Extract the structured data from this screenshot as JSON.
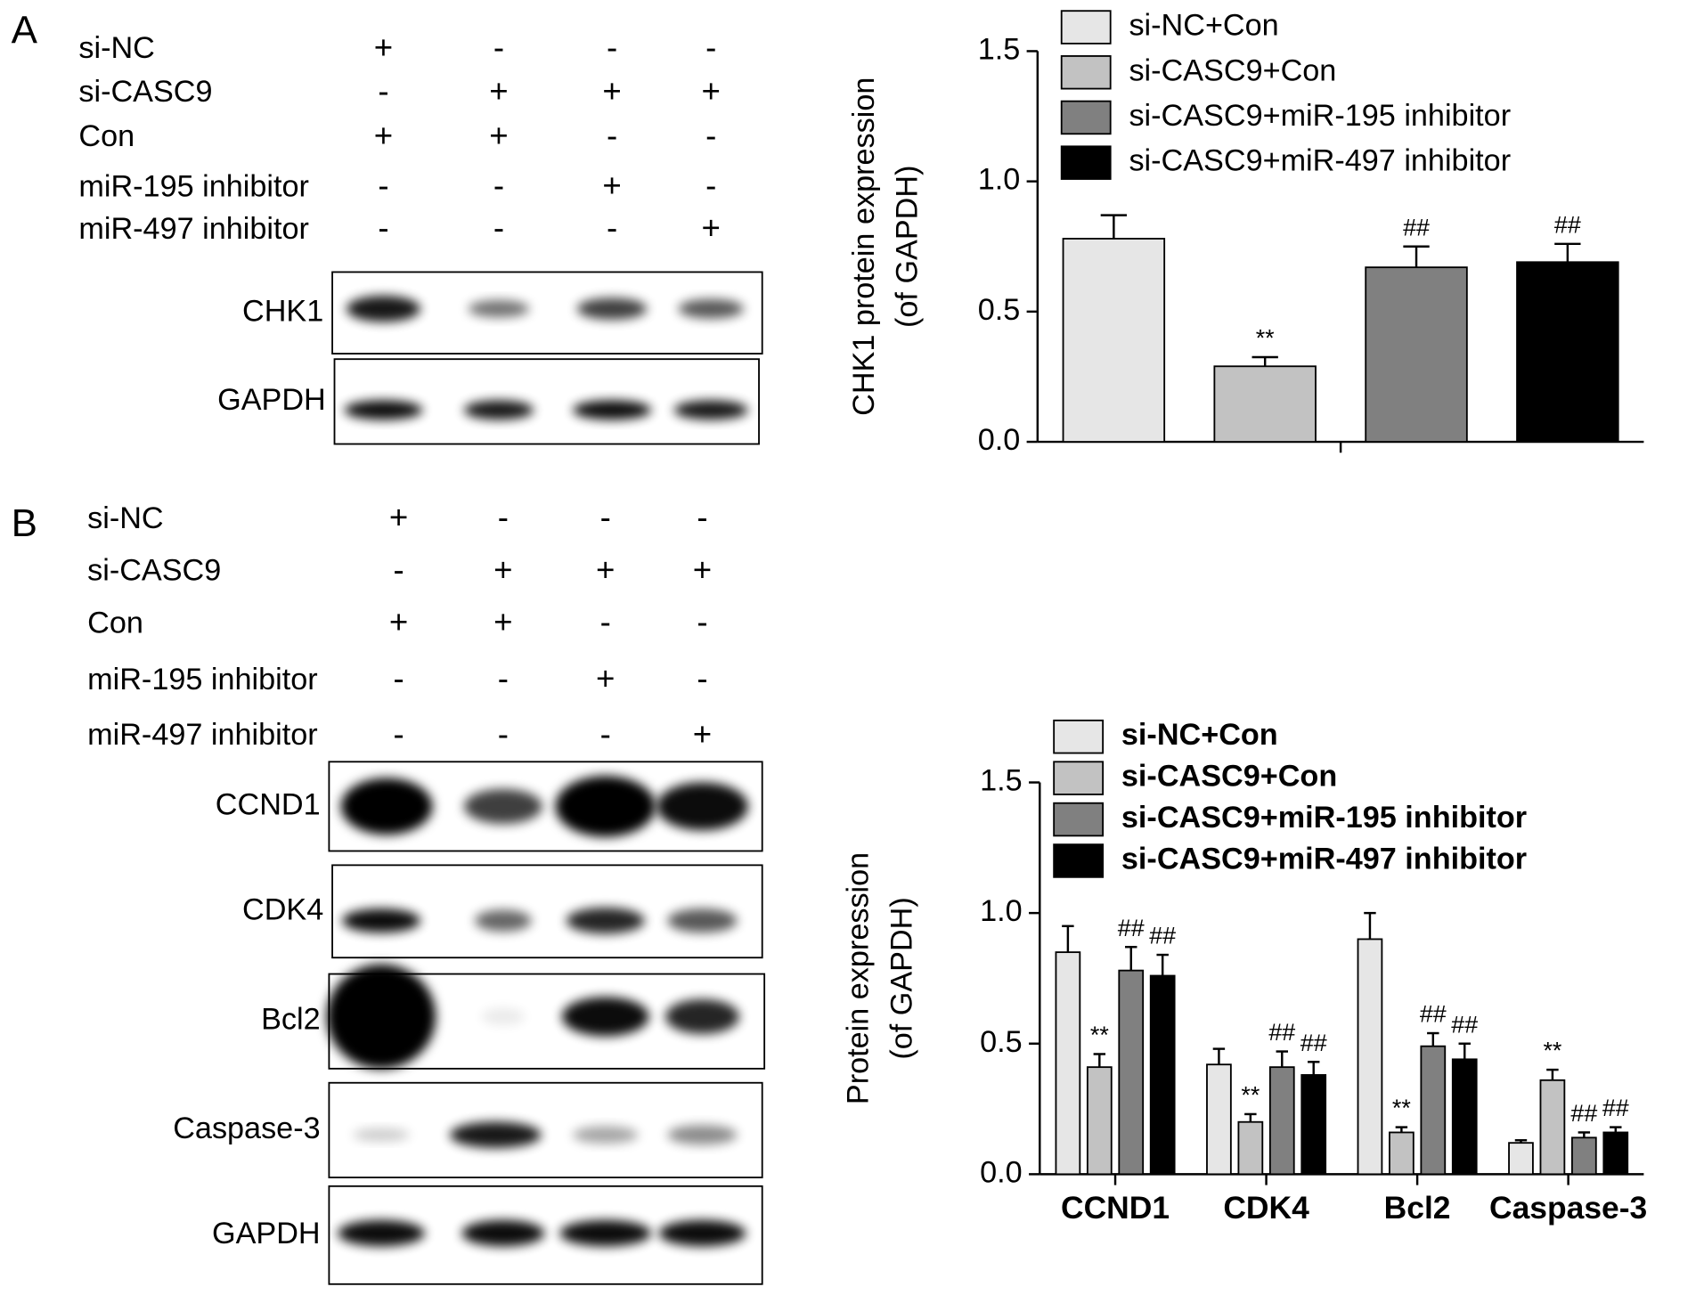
{
  "panels": [
    {
      "letter": "A",
      "conditions": [
        {
          "name": "si-NC",
          "signs": [
            "+",
            "-",
            "-",
            "-"
          ]
        },
        {
          "name": "si-CASC9",
          "signs": [
            "-",
            "+",
            "+",
            "+"
          ]
        },
        {
          "name": "Con",
          "signs": [
            "+",
            "+",
            "-",
            "-"
          ]
        },
        {
          "name": "miR-195 inhibitor",
          "signs": [
            "-",
            "-",
            "+",
            "-"
          ]
        },
        {
          "name": "miR-497 inhibitor",
          "signs": [
            "-",
            "-",
            "-",
            "+"
          ]
        }
      ],
      "blots": [
        "CHK1",
        "GAPDH"
      ]
    },
    {
      "letter": "B",
      "conditions": [
        {
          "name": "si-NC",
          "signs": [
            "+",
            "-",
            "-",
            "-"
          ]
        },
        {
          "name": "si-CASC9",
          "signs": [
            "-",
            "+",
            "+",
            "+"
          ]
        },
        {
          "name": "Con",
          "signs": [
            "+",
            "+",
            "-",
            "-"
          ]
        },
        {
          "name": "miR-195 inhibitor",
          "signs": [
            "-",
            "-",
            "+",
            "-"
          ]
        },
        {
          "name": "miR-497 inhibitor",
          "signs": [
            "-",
            "-",
            "-",
            "+"
          ]
        }
      ],
      "blots": [
        "CCND1",
        "CDK4",
        "Bcl2",
        "Caspase-3",
        "GAPDH"
      ]
    }
  ],
  "chart_data": [
    {
      "type": "bar",
      "y_label": [
        "CHK1 protein expression",
        "(of GAPDH)"
      ],
      "categories": [
        null
      ],
      "series": [
        {
          "name": "si-NC+Con",
          "color": "#e6e6e6",
          "values": [
            0.78
          ],
          "errors": [
            0.09
          ]
        },
        {
          "name": "si-CASC9+Con",
          "color": "#c2c2c2",
          "values": [
            0.29
          ],
          "errors": [
            0.035
          ],
          "annotations": [
            "**"
          ]
        },
        {
          "name": "si-CASC9+miR-195 inhibitor",
          "color": "#808080",
          "values": [
            0.67
          ],
          "errors": [
            0.08
          ],
          "annotations": [
            "##"
          ]
        },
        {
          "name": "si-CASC9+miR-497 inhibitor",
          "color": "#000000",
          "values": [
            0.69
          ],
          "errors": [
            0.07
          ],
          "annotations": [
            "##"
          ]
        }
      ],
      "ylim": [
        0,
        1.5
      ],
      "yticks": [
        {
          "value": 0,
          "label": "0.0"
        },
        {
          "value": 0.5,
          "label": "0.5"
        },
        {
          "value": 1,
          "label": "1.0"
        },
        {
          "value": 1.5,
          "label": "1.5"
        }
      ]
    },
    {
      "type": "bar",
      "y_label": [
        "Protein expression",
        "(of GAPDH)"
      ],
      "categories": [
        "CCND1",
        "CDK4",
        "Bcl2",
        "Caspase-3"
      ],
      "series": [
        {
          "name": "si-NC+Con",
          "color": "#e6e6e6",
          "values": [
            0.85,
            0.42,
            0.9,
            0.12
          ],
          "errors": [
            0.1,
            0.06,
            0.1,
            0.01
          ]
        },
        {
          "name": "si-CASC9+Con",
          "color": "#c2c2c2",
          "values": [
            0.41,
            0.2,
            0.16,
            0.36
          ],
          "errors": [
            0.05,
            0.03,
            0.02,
            0.04
          ],
          "annotations": [
            "**",
            "**",
            "**",
            "**"
          ]
        },
        {
          "name": "si-CASC9+miR-195 inhibitor",
          "color": "#808080",
          "values": [
            0.78,
            0.41,
            0.49,
            0.14
          ],
          "errors": [
            0.09,
            0.06,
            0.05,
            0.02
          ],
          "annotations": [
            "##",
            "##",
            "##",
            "##"
          ]
        },
        {
          "name": "si-CASC9+miR-497 inhibitor",
          "color": "#000000",
          "values": [
            0.76,
            0.38,
            0.44,
            0.16
          ],
          "errors": [
            0.08,
            0.05,
            0.06,
            0.02
          ],
          "annotations": [
            "##",
            "##",
            "##",
            "##"
          ]
        }
      ],
      "ylim": [
        0,
        1.5
      ],
      "yticks": [
        {
          "value": 0,
          "label": "0.0"
        },
        {
          "value": 0.5,
          "label": "0.5"
        },
        {
          "value": 1,
          "label": "1.0"
        },
        {
          "value": 1.5,
          "label": "1.5"
        }
      ]
    }
  ]
}
